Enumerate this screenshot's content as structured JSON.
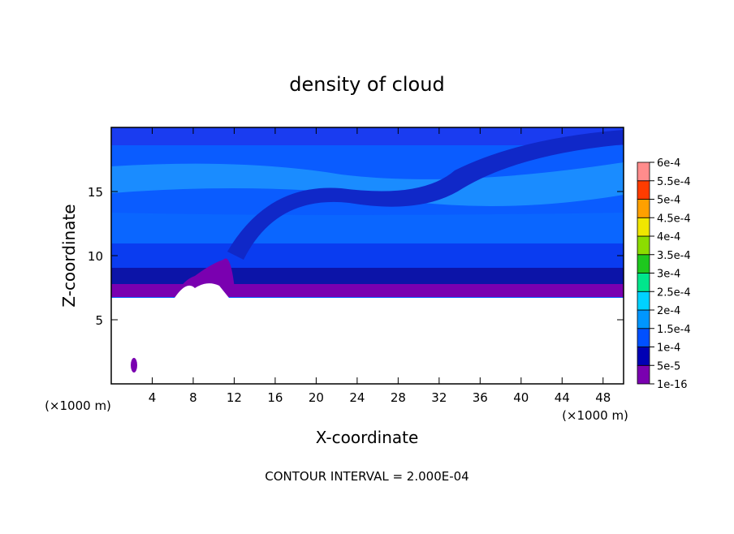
{
  "chart_data": {
    "type": "contour",
    "title": "density of cloud",
    "xlabel": "X-coordinate",
    "ylabel": "Z-coordinate",
    "x_unit_label": "(×1000 m)",
    "z_unit_label": "(×1000 m)",
    "xlim": [
      0,
      50
    ],
    "ylim": [
      0,
      20
    ],
    "xticks": [
      4,
      8,
      12,
      16,
      20,
      24,
      28,
      32,
      36,
      40,
      44,
      48
    ],
    "yticks": [
      5,
      10,
      15
    ],
    "colorbar": {
      "levels": [
        {
          "value": 1e-16,
          "label": "1e-16"
        },
        {
          "value": 5e-05,
          "label": "5e-5"
        },
        {
          "value": 0.0001,
          "label": "1e-4"
        },
        {
          "value": 0.00015,
          "label": "1.5e-4"
        },
        {
          "value": 0.0002,
          "label": "2e-4"
        },
        {
          "value": 0.00025,
          "label": "2.5e-4"
        },
        {
          "value": 0.0003,
          "label": "3e-4"
        },
        {
          "value": 0.00035,
          "label": "3.5e-4"
        },
        {
          "value": 0.0004,
          "label": "4e-4"
        },
        {
          "value": 0.00045,
          "label": "4.5e-4"
        },
        {
          "value": 0.0005,
          "label": "5e-4"
        },
        {
          "value": 0.00055,
          "label": "5.5e-4"
        },
        {
          "value": 0.0006,
          "label": "6e-4"
        }
      ],
      "colors": [
        "#7a00b0",
        "#0000b4",
        "#0050ff",
        "#0096ff",
        "#00d2ff",
        "#00e68c",
        "#1ec81e",
        "#8cdc00",
        "#f0e600",
        "#ffa000",
        "#ff3c00",
        "#ff8c8c"
      ]
    },
    "footnote": "CONTOUR INTERVAL = 2.000E-04"
  }
}
